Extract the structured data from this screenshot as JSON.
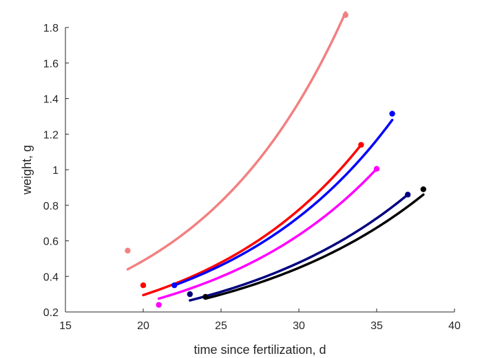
{
  "chart_data": {
    "type": "scatter",
    "title": "",
    "xlabel": "time since fertilization, d",
    "ylabel": "weight, g",
    "xlim": [
      15,
      40
    ],
    "ylim": [
      0.2,
      1.8
    ],
    "xticks": [
      15,
      20,
      25,
      30,
      35,
      40
    ],
    "yticks": [
      0.2,
      0.4,
      0.6,
      0.8,
      1,
      1.2,
      1.4,
      1.6,
      1.8
    ],
    "xtick_labels": [
      "15",
      "20",
      "25",
      "30",
      "35",
      "40"
    ],
    "ytick_labels": [
      "0.2",
      "0.4",
      "0.6",
      "0.8",
      "1",
      "1.2",
      "1.4",
      "1.6",
      "1.8"
    ],
    "grid": false,
    "series": [
      {
        "color": "#f28080",
        "points": [
          {
            "x": 19,
            "y": 0.545
          },
          {
            "x": 33,
            "y": 1.87
          }
        ],
        "fit": [
          {
            "x": 19,
            "y": 0.44
          },
          {
            "x": 33,
            "y": 1.885
          }
        ]
      },
      {
        "color": "#ff0000",
        "points": [
          {
            "x": 20,
            "y": 0.35
          },
          {
            "x": 34,
            "y": 1.14
          }
        ],
        "fit": [
          {
            "x": 20,
            "y": 0.295
          },
          {
            "x": 34,
            "y": 1.14
          }
        ]
      },
      {
        "color": "#0000ff",
        "points": [
          {
            "x": 22,
            "y": 0.35
          },
          {
            "x": 36,
            "y": 1.315
          }
        ],
        "fit": [
          {
            "x": 22,
            "y": 0.35
          },
          {
            "x": 36,
            "y": 1.28
          }
        ]
      },
      {
        "color": "#ff00ff",
        "points": [
          {
            "x": 21,
            "y": 0.24
          },
          {
            "x": 35,
            "y": 1.005
          }
        ],
        "fit": [
          {
            "x": 21,
            "y": 0.275
          },
          {
            "x": 35,
            "y": 1.005
          }
        ]
      },
      {
        "color": "#000080",
        "points": [
          {
            "x": 23,
            "y": 0.3
          },
          {
            "x": 37,
            "y": 0.86
          }
        ],
        "fit": [
          {
            "x": 23,
            "y": 0.265
          },
          {
            "x": 37,
            "y": 0.86
          }
        ]
      },
      {
        "color": "#000000",
        "points": [
          {
            "x": 24,
            "y": 0.285
          },
          {
            "x": 38,
            "y": 0.89
          }
        ],
        "fit": [
          {
            "x": 24,
            "y": 0.275
          },
          {
            "x": 38,
            "y": 0.86
          }
        ]
      }
    ]
  }
}
